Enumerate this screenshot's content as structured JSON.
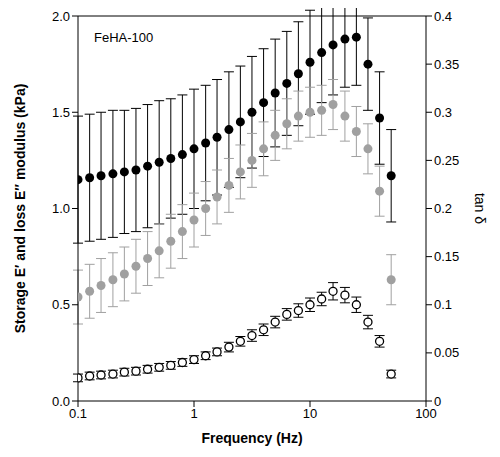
{
  "chart_data": {
    "type": "scatter",
    "annotation": "FeHA-100",
    "x_label": "Frequency (Hz)",
    "y_label": "Storage E′ and loss E″ modulus (kPa)",
    "y2_label": "tan δ",
    "log": "x",
    "grid": false,
    "x": [
      0.1,
      0.126,
      0.158,
      0.2,
      0.251,
      0.316,
      0.398,
      0.501,
      0.631,
      0.794,
      1,
      1.26,
      1.58,
      2,
      2.51,
      3.16,
      3.98,
      5.01,
      6.31,
      7.94,
      10,
      12.6,
      15.8,
      20,
      25.1,
      31.6,
      39.8,
      50.1
    ],
    "xlim": [
      0.1,
      100
    ],
    "xticks": [
      0.1,
      1,
      10,
      100
    ],
    "ylim": [
      0,
      2
    ],
    "yticks": [
      {
        "value": 0,
        "label": "0.0"
      },
      {
        "value": 0.5,
        "label": "0.5"
      },
      {
        "value": 1,
        "label": "1.0"
      },
      {
        "value": 1.5,
        "label": "1.5"
      },
      {
        "value": 2,
        "label": "2.0"
      }
    ],
    "y2lim": [
      0,
      0.4
    ],
    "y2ticks": [
      0,
      0.05,
      0.1,
      0.15,
      0.2,
      0.25,
      0.3,
      0.35,
      0.4
    ],
    "series": [
      {
        "color": "#000000",
        "marker": "circle",
        "values": [
          1.15,
          1.16,
          1.17,
          1.18,
          1.19,
          1.2,
          1.22,
          1.24,
          1.26,
          1.28,
          1.31,
          1.34,
          1.37,
          1.41,
          1.45,
          1.5,
          1.55,
          1.6,
          1.65,
          1.7,
          1.76,
          1.81,
          1.85,
          1.88,
          1.89,
          1.75,
          1.47,
          1.17
        ],
        "errors": [
          0.33,
          0.33,
          0.33,
          0.33,
          0.32,
          0.32,
          0.32,
          0.32,
          0.31,
          0.31,
          0.31,
          0.3,
          0.3,
          0.3,
          0.29,
          0.29,
          0.28,
          0.28,
          0.27,
          0.27,
          0.27,
          0.26,
          0.26,
          0.25,
          0.25,
          0.24,
          0.24,
          0.24
        ]
      },
      {
        "color": "#a0a0a0",
        "marker": "circle",
        "axis": "y2",
        "values": [
          0.108,
          0.114,
          0.12,
          0.126,
          0.132,
          0.14,
          0.148,
          0.156,
          0.166,
          0.176,
          0.188,
          0.2,
          0.212,
          0.224,
          0.238,
          0.25,
          0.262,
          0.276,
          0.288,
          0.296,
          0.3,
          0.302,
          0.308,
          0.296,
          0.28,
          0.262,
          0.218,
          0.126
        ],
        "errors": [
          0.028,
          0.028,
          0.028,
          0.028,
          0.028,
          0.028,
          0.028,
          0.028,
          0.028,
          0.028,
          0.028,
          0.028,
          0.028,
          0.028,
          0.028,
          0.028,
          0.028,
          0.026,
          0.026,
          0.026,
          0.026,
          0.026,
          0.026,
          0.026,
          0.026,
          0.026,
          0.026,
          0.026
        ]
      },
      {
        "color": "#000000",
        "marker": "open_circle",
        "values": [
          0.12,
          0.13,
          0.135,
          0.14,
          0.15,
          0.155,
          0.165,
          0.175,
          0.185,
          0.2,
          0.215,
          0.235,
          0.255,
          0.28,
          0.31,
          0.34,
          0.37,
          0.41,
          0.45,
          0.47,
          0.5,
          0.53,
          0.57,
          0.55,
          0.5,
          0.41,
          0.31,
          0.14
        ],
        "errors": [
          0.02,
          0.02,
          0.02,
          0.02,
          0.02,
          0.02,
          0.02,
          0.02,
          0.02,
          0.02,
          0.02,
          0.02,
          0.02,
          0.025,
          0.025,
          0.03,
          0.03,
          0.03,
          0.03,
          0.035,
          0.035,
          0.035,
          0.045,
          0.04,
          0.04,
          0.035,
          0.03,
          0.02
        ]
      }
    ]
  }
}
